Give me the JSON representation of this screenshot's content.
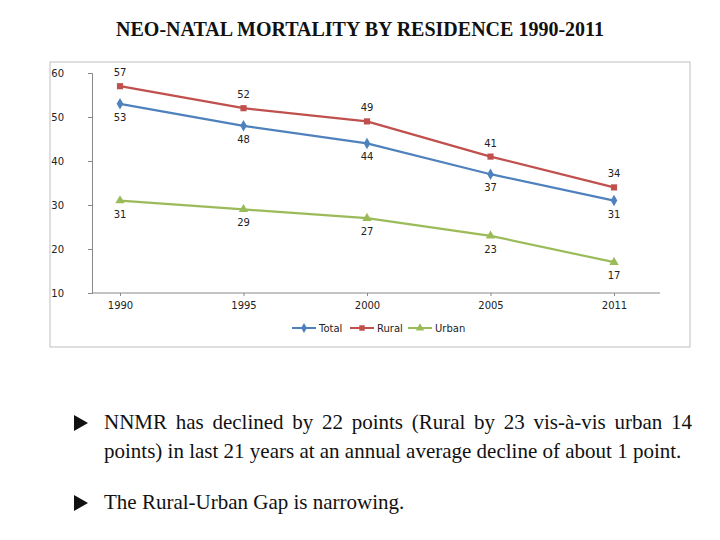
{
  "chart_data": {
    "type": "line",
    "title": "NEO-NATAL MORTALITY BY RESIDENCE 1990-2011",
    "categories": [
      "1990",
      "1995",
      "2000",
      "2005",
      "2011"
    ],
    "series": [
      {
        "name": "Total",
        "color": "#4f81bd",
        "marker": "diamond",
        "values": [
          53,
          48,
          44,
          37,
          31
        ]
      },
      {
        "name": "Rural",
        "color": "#c0504d",
        "marker": "square",
        "values": [
          57,
          52,
          49,
          41,
          34
        ]
      },
      {
        "name": "Urban",
        "color": "#9bbb59",
        "marker": "triangle",
        "values": [
          31,
          29,
          27,
          23,
          17
        ]
      }
    ],
    "ylim": [
      10,
      60
    ],
    "yticks": [
      10,
      20,
      30,
      40,
      50,
      60
    ],
    "grid": false,
    "data_labels": true,
    "legend": "bottom",
    "annotations": [
      "NNMR has declined by 22 points (Rural by 23 vis-à-vis urban 14 points) in last 21 years at an annual average decline of about 1 point.",
      "The Rural-Urban Gap is narrowing."
    ]
  }
}
